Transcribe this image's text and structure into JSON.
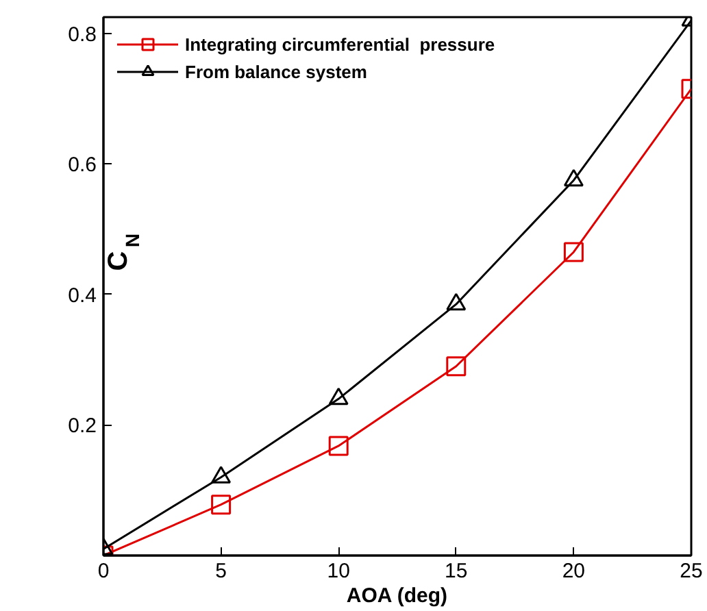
{
  "chart_data": {
    "type": "line",
    "xlabel": "AOA (deg)",
    "ylabel": "C$_{N}$",
    "x": [
      0,
      5,
      10,
      15,
      20,
      25
    ],
    "series": [
      {
        "name": "Integrating circumferential  pressure",
        "color": "#e00000",
        "marker": "square",
        "values": [
          0.0,
          0.078,
          0.168,
          0.29,
          0.465,
          0.715
        ]
      },
      {
        "name": "From balance system",
        "color": "#000000",
        "marker": "triangle",
        "values": [
          0.01,
          0.12,
          0.24,
          0.385,
          0.575,
          0.82
        ]
      }
    ],
    "xlim": [
      0,
      25
    ],
    "ylim": [
      0,
      0.825
    ],
    "xticks": [
      0,
      5,
      10,
      15,
      20,
      25
    ],
    "yticks": [
      0.2,
      0.4,
      0.6,
      0.8
    ],
    "legend": "top left",
    "grid": false,
    "line_style": "solid"
  }
}
